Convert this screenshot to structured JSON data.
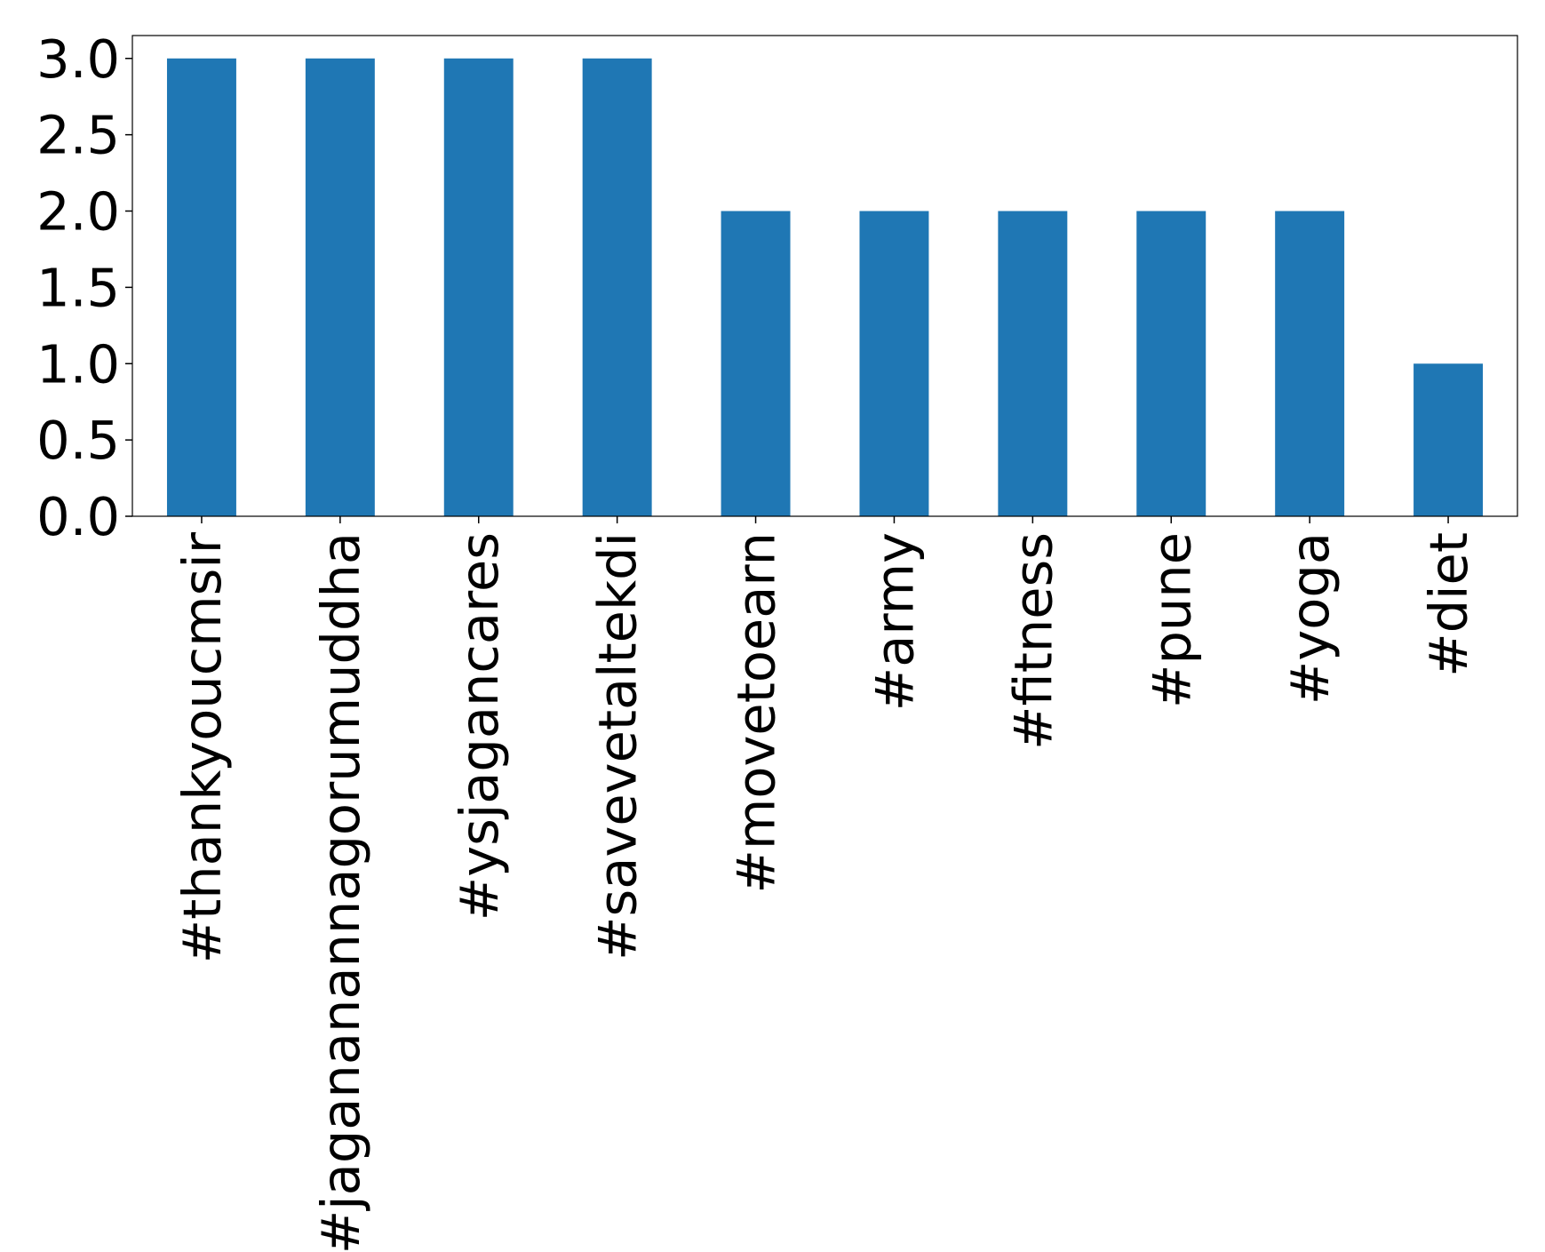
{
  "chart_data": {
    "type": "bar",
    "categories": [
      "#thankyoucmsir",
      "#jagananannagorumuddha",
      "#ysjagancares",
      "#savevetaltekdi",
      "#movetoearn",
      "#army",
      "#fitness",
      "#pune",
      "#yoga",
      "#diet"
    ],
    "values": [
      3,
      3,
      3,
      3,
      2,
      2,
      2,
      2,
      2,
      1
    ],
    "color": "#1f77b4",
    "ylim": [
      0,
      3.15
    ],
    "yticks": [
      {
        "value": 0,
        "label": "0.0"
      },
      0.5,
      {
        "value": 1,
        "label": "1.0"
      },
      1.5,
      {
        "value": 2,
        "label": "2.0"
      },
      2.5,
      {
        "value": 3,
        "label": "3.0"
      }
    ],
    "grid": false
  }
}
